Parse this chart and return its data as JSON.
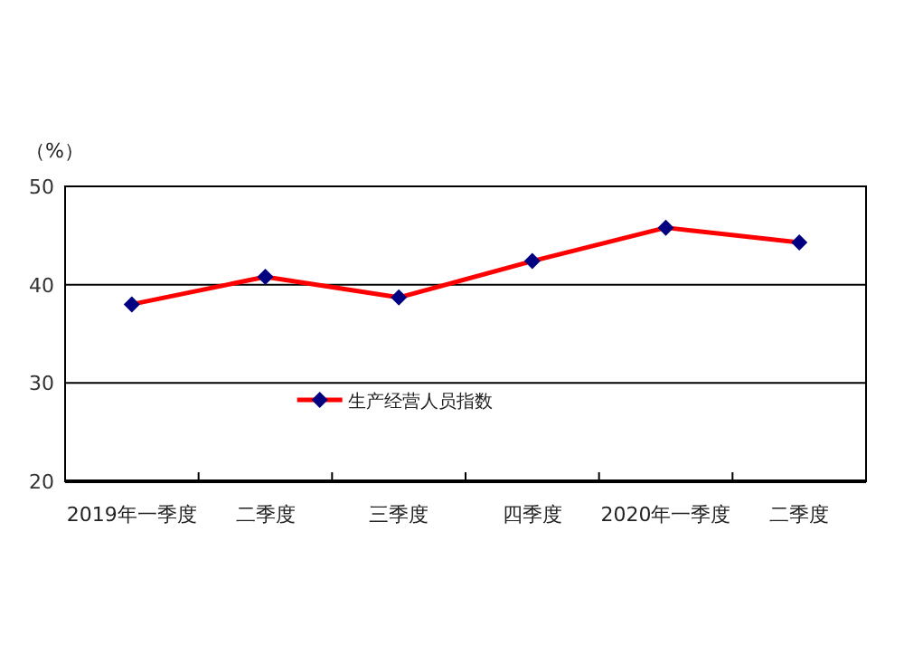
{
  "chart_data": {
    "type": "line",
    "ylabel": "（%）",
    "categories": [
      "2019年一季度",
      "二季度",
      "三季度",
      "四季度",
      "2020年一季度",
      "二季度"
    ],
    "series": [
      {
        "name": "生产经营人员指数",
        "color": "#ff0000",
        "values": [
          38.0,
          40.8,
          38.7,
          42.4,
          45.8,
          44.3
        ]
      }
    ],
    "ylim": [
      20,
      50
    ],
    "yticks": [
      20,
      30,
      40,
      50
    ],
    "grid": "y",
    "legend": "bottom",
    "marker": "diamond",
    "line_style": "solid"
  }
}
